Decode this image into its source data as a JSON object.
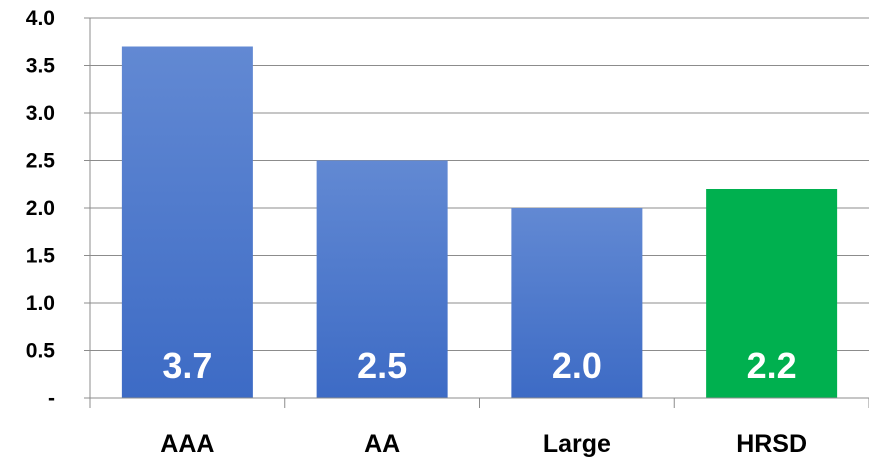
{
  "chart_data": {
    "type": "bar",
    "categories": [
      "AAA",
      "AA",
      "Large",
      "HRSD"
    ],
    "values": [
      3.7,
      2.5,
      2.0,
      2.2
    ],
    "data_labels": [
      "3.7",
      "2.5",
      "2.0",
      "2.2"
    ],
    "title": "",
    "xlabel": "",
    "ylabel": "",
    "ylim": [
      0,
      4.0
    ],
    "yticks": [
      {
        "value": 0,
        "label": "-"
      },
      {
        "value": 0.5,
        "label": "0.5"
      },
      {
        "value": 1.0,
        "label": "1.0"
      },
      {
        "value": 1.5,
        "label": "1.5"
      },
      {
        "value": 2.0,
        "label": "2.0"
      },
      {
        "value": 2.5,
        "label": "2.5"
      },
      {
        "value": 3.0,
        "label": "3.0"
      },
      {
        "value": 3.5,
        "label": "3.5"
      },
      {
        "value": 4.0,
        "label": "4.0"
      }
    ],
    "grid": true,
    "legend": "none",
    "colors": {
      "default_bar": "#3d6bc5",
      "default_bar_top": "#6289d3",
      "highlight_bar": "#00b04f",
      "highlight_category": "HRSD",
      "gridline": "#8c8c8c"
    }
  }
}
